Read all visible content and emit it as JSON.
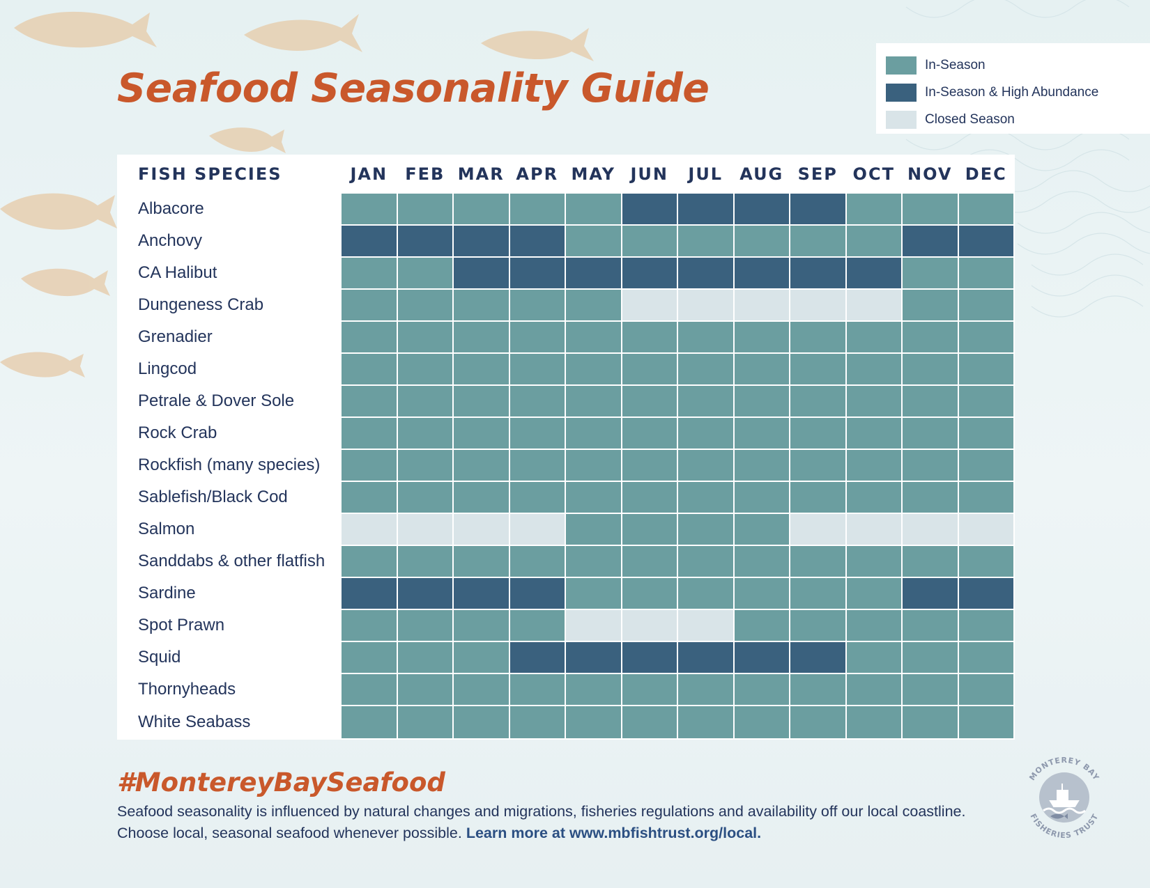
{
  "page": {
    "title": "Seafood Seasonality Guide",
    "hashtag": "#MontereyBaySeafood",
    "footnote_line1": "Seafood seasonality is influenced by natural changes and migrations, fisheries regulations and availability off our local coastline.",
    "footnote_line2": "Choose local, seasonal seafood whenever possible.",
    "footnote_link": "Learn more at www.mbfishtrust.org/local.",
    "logo": {
      "top_text": "MONTEREY BAY",
      "bottom_text": "FISHERIES TRUST"
    }
  },
  "colors": {
    "in_season": "#6b9ea0",
    "high_abundance": "#3a617e",
    "closed": "#d9e4e8",
    "title": "#c9582b",
    "text": "#23345b"
  },
  "legend": [
    {
      "code": 1,
      "label": "In-Season"
    },
    {
      "code": 2,
      "label": "In-Season & High Abundance"
    },
    {
      "code": 0,
      "label": "Closed Season"
    }
  ],
  "chart_data": {
    "type": "heatmap",
    "title": "Seafood Seasonality Guide",
    "row_header": "FISH SPECIES",
    "columns": [
      "JAN",
      "FEB",
      "MAR",
      "APR",
      "MAY",
      "JUN",
      "JUL",
      "AUG",
      "SEP",
      "OCT",
      "NOV",
      "DEC"
    ],
    "value_legend": {
      "0": "Closed Season",
      "1": "In-Season",
      "2": "In-Season & High Abundance"
    },
    "rows": [
      {
        "species": "Albacore",
        "values": [
          1,
          1,
          1,
          1,
          1,
          2,
          2,
          2,
          2,
          1,
          1,
          1
        ]
      },
      {
        "species": "Anchovy",
        "values": [
          2,
          2,
          2,
          2,
          1,
          1,
          1,
          1,
          1,
          1,
          2,
          2
        ]
      },
      {
        "species": "CA Halibut",
        "values": [
          1,
          1,
          2,
          2,
          2,
          2,
          2,
          2,
          2,
          2,
          1,
          1
        ]
      },
      {
        "species": "Dungeness Crab",
        "values": [
          1,
          1,
          1,
          1,
          1,
          0,
          0,
          0,
          0,
          0,
          1,
          1
        ]
      },
      {
        "species": "Grenadier",
        "values": [
          1,
          1,
          1,
          1,
          1,
          1,
          1,
          1,
          1,
          1,
          1,
          1
        ]
      },
      {
        "species": "Lingcod",
        "values": [
          1,
          1,
          1,
          1,
          1,
          1,
          1,
          1,
          1,
          1,
          1,
          1
        ]
      },
      {
        "species": "Petrale & Dover Sole",
        "values": [
          1,
          1,
          1,
          1,
          1,
          1,
          1,
          1,
          1,
          1,
          1,
          1
        ]
      },
      {
        "species": "Rock Crab",
        "values": [
          1,
          1,
          1,
          1,
          1,
          1,
          1,
          1,
          1,
          1,
          1,
          1
        ]
      },
      {
        "species": "Rockfish (many species)",
        "values": [
          1,
          1,
          1,
          1,
          1,
          1,
          1,
          1,
          1,
          1,
          1,
          1
        ]
      },
      {
        "species": "Sablefish/Black Cod",
        "values": [
          1,
          1,
          1,
          1,
          1,
          1,
          1,
          1,
          1,
          1,
          1,
          1
        ]
      },
      {
        "species": "Salmon",
        "values": [
          0,
          0,
          0,
          0,
          1,
          1,
          1,
          1,
          0,
          0,
          0,
          0
        ]
      },
      {
        "species": "Sanddabs & other flatfish",
        "values": [
          1,
          1,
          1,
          1,
          1,
          1,
          1,
          1,
          1,
          1,
          1,
          1
        ]
      },
      {
        "species": "Sardine",
        "values": [
          2,
          2,
          2,
          2,
          1,
          1,
          1,
          1,
          1,
          1,
          2,
          2
        ]
      },
      {
        "species": "Spot Prawn",
        "values": [
          1,
          1,
          1,
          1,
          0,
          0,
          0,
          1,
          1,
          1,
          1,
          1
        ]
      },
      {
        "species": "Squid",
        "values": [
          1,
          1,
          1,
          2,
          2,
          2,
          2,
          2,
          2,
          1,
          1,
          1
        ]
      },
      {
        "species": "Thornyheads",
        "values": [
          1,
          1,
          1,
          1,
          1,
          1,
          1,
          1,
          1,
          1,
          1,
          1
        ]
      },
      {
        "species": "White Seabass",
        "values": [
          1,
          1,
          1,
          1,
          1,
          1,
          1,
          1,
          1,
          1,
          1,
          1
        ]
      }
    ]
  }
}
